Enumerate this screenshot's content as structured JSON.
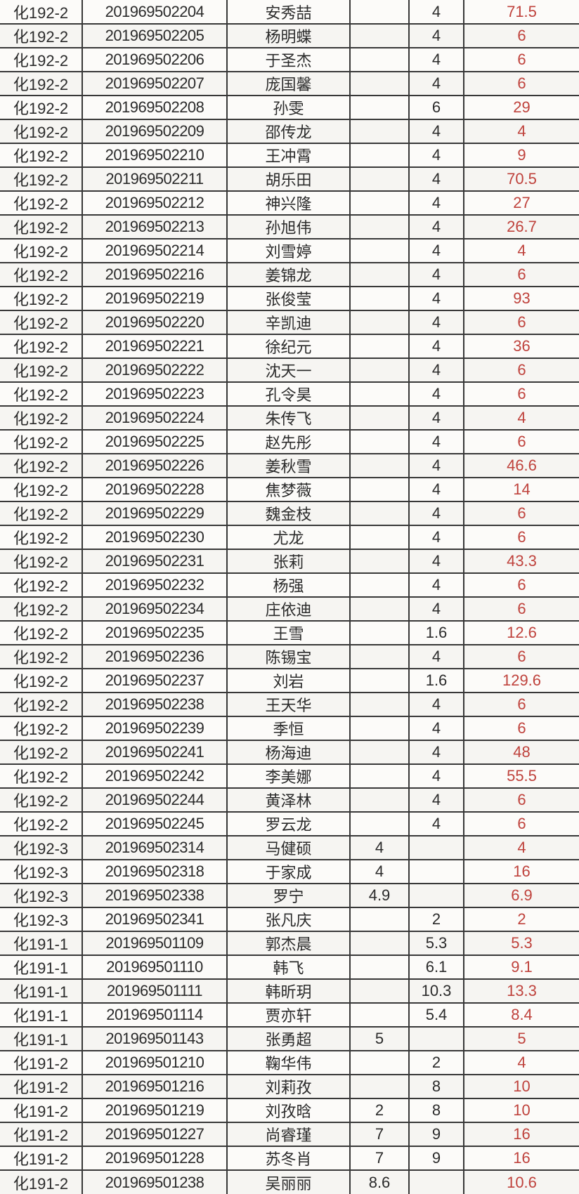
{
  "colors": {
    "accent_red": "#bf423c",
    "text": "#2b2b2b",
    "grid": "#383838",
    "background": "#fbfaf8"
  },
  "table": {
    "rows": [
      {
        "class": "化192-2",
        "student_id": "201969502204",
        "name": "安秀喆",
        "val_a": "",
        "val_b": "4",
        "amount": "71.5"
      },
      {
        "class": "化192-2",
        "student_id": "201969502205",
        "name": "杨明蝶",
        "val_a": "",
        "val_b": "4",
        "amount": "6"
      },
      {
        "class": "化192-2",
        "student_id": "201969502206",
        "name": "于圣杰",
        "val_a": "",
        "val_b": "4",
        "amount": "6"
      },
      {
        "class": "化192-2",
        "student_id": "201969502207",
        "name": "庞国馨",
        "val_a": "",
        "val_b": "4",
        "amount": "6"
      },
      {
        "class": "化192-2",
        "student_id": "201969502208",
        "name": "孙雯",
        "val_a": "",
        "val_b": "6",
        "amount": "29"
      },
      {
        "class": "化192-2",
        "student_id": "201969502209",
        "name": "邵传龙",
        "val_a": "",
        "val_b": "4",
        "amount": "4"
      },
      {
        "class": "化192-2",
        "student_id": "201969502210",
        "name": "王冲霄",
        "val_a": "",
        "val_b": "4",
        "amount": "9"
      },
      {
        "class": "化192-2",
        "student_id": "201969502211",
        "name": "胡乐田",
        "val_a": "",
        "val_b": "4",
        "amount": "70.5"
      },
      {
        "class": "化192-2",
        "student_id": "201969502212",
        "name": "神兴隆",
        "val_a": "",
        "val_b": "4",
        "amount": "27"
      },
      {
        "class": "化192-2",
        "student_id": "201969502213",
        "name": "孙旭伟",
        "val_a": "",
        "val_b": "4",
        "amount": "26.7"
      },
      {
        "class": "化192-2",
        "student_id": "201969502214",
        "name": "刘雪婷",
        "val_a": "",
        "val_b": "4",
        "amount": "4"
      },
      {
        "class": "化192-2",
        "student_id": "201969502216",
        "name": "姜锦龙",
        "val_a": "",
        "val_b": "4",
        "amount": "6"
      },
      {
        "class": "化192-2",
        "student_id": "201969502219",
        "name": "张俊莹",
        "val_a": "",
        "val_b": "4",
        "amount": "93"
      },
      {
        "class": "化192-2",
        "student_id": "201969502220",
        "name": "辛凯迪",
        "val_a": "",
        "val_b": "4",
        "amount": "6"
      },
      {
        "class": "化192-2",
        "student_id": "201969502221",
        "name": "徐纪元",
        "val_a": "",
        "val_b": "4",
        "amount": "36"
      },
      {
        "class": "化192-2",
        "student_id": "201969502222",
        "name": "沈天一",
        "val_a": "",
        "val_b": "4",
        "amount": "6"
      },
      {
        "class": "化192-2",
        "student_id": "201969502223",
        "name": "孔令昊",
        "val_a": "",
        "val_b": "4",
        "amount": "6"
      },
      {
        "class": "化192-2",
        "student_id": "201969502224",
        "name": "朱传飞",
        "val_a": "",
        "val_b": "4",
        "amount": "4"
      },
      {
        "class": "化192-2",
        "student_id": "201969502225",
        "name": "赵先彤",
        "val_a": "",
        "val_b": "4",
        "amount": "6"
      },
      {
        "class": "化192-2",
        "student_id": "201969502226",
        "name": "姜秋雪",
        "val_a": "",
        "val_b": "4",
        "amount": "46.6"
      },
      {
        "class": "化192-2",
        "student_id": "201969502228",
        "name": "焦梦薇",
        "val_a": "",
        "val_b": "4",
        "amount": "14"
      },
      {
        "class": "化192-2",
        "student_id": "201969502229",
        "name": "魏金枝",
        "val_a": "",
        "val_b": "4",
        "amount": "6"
      },
      {
        "class": "化192-2",
        "student_id": "201969502230",
        "name": "尤龙",
        "val_a": "",
        "val_b": "4",
        "amount": "6"
      },
      {
        "class": "化192-2",
        "student_id": "201969502231",
        "name": "张莉",
        "val_a": "",
        "val_b": "4",
        "amount": "43.3"
      },
      {
        "class": "化192-2",
        "student_id": "201969502232",
        "name": "杨强",
        "val_a": "",
        "val_b": "4",
        "amount": "6"
      },
      {
        "class": "化192-2",
        "student_id": "201969502234",
        "name": "庄依迪",
        "val_a": "",
        "val_b": "4",
        "amount": "6"
      },
      {
        "class": "化192-2",
        "student_id": "201969502235",
        "name": "王雪",
        "val_a": "",
        "val_b": "1.6",
        "amount": "12.6"
      },
      {
        "class": "化192-2",
        "student_id": "201969502236",
        "name": "陈锡宝",
        "val_a": "",
        "val_b": "4",
        "amount": "6"
      },
      {
        "class": "化192-2",
        "student_id": "201969502237",
        "name": "刘岩",
        "val_a": "",
        "val_b": "1.6",
        "amount": "129.6"
      },
      {
        "class": "化192-2",
        "student_id": "201969502238",
        "name": "王天华",
        "val_a": "",
        "val_b": "4",
        "amount": "6"
      },
      {
        "class": "化192-2",
        "student_id": "201969502239",
        "name": "季恒",
        "val_a": "",
        "val_b": "4",
        "amount": "6"
      },
      {
        "class": "化192-2",
        "student_id": "201969502241",
        "name": "杨海迪",
        "val_a": "",
        "val_b": "4",
        "amount": "48"
      },
      {
        "class": "化192-2",
        "student_id": "201969502242",
        "name": "李美娜",
        "val_a": "",
        "val_b": "4",
        "amount": "55.5"
      },
      {
        "class": "化192-2",
        "student_id": "201969502244",
        "name": "黄泽林",
        "val_a": "",
        "val_b": "4",
        "amount": "6"
      },
      {
        "class": "化192-2",
        "student_id": "201969502245",
        "name": "罗云龙",
        "val_a": "",
        "val_b": "4",
        "amount": "6"
      },
      {
        "class": "化192-3",
        "student_id": "201969502314",
        "name": "马健硕",
        "val_a": "4",
        "val_b": "",
        "amount": "4"
      },
      {
        "class": "化192-3",
        "student_id": "201969502318",
        "name": "于家成",
        "val_a": "4",
        "val_b": "",
        "amount": "16"
      },
      {
        "class": "化192-3",
        "student_id": "201969502338",
        "name": "罗宁",
        "val_a": "4.9",
        "val_b": "",
        "amount": "6.9"
      },
      {
        "class": "化192-3",
        "student_id": "201969502341",
        "name": "张凡庆",
        "val_a": "",
        "val_b": "2",
        "amount": "2"
      },
      {
        "class": "化191-1",
        "student_id": "201969501109",
        "name": "郭杰晨",
        "val_a": "",
        "val_b": "5.3",
        "amount": "5.3"
      },
      {
        "class": "化191-1",
        "student_id": "201969501110",
        "name": "韩飞",
        "val_a": "",
        "val_b": "6.1",
        "amount": "9.1"
      },
      {
        "class": "化191-1",
        "student_id": "201969501111",
        "name": "韩昕玥",
        "val_a": "",
        "val_b": "10.3",
        "amount": "13.3"
      },
      {
        "class": "化191-1",
        "student_id": "201969501114",
        "name": "贾亦轩",
        "val_a": "",
        "val_b": "5.4",
        "amount": "8.4"
      },
      {
        "class": "化191-1",
        "student_id": "201969501143",
        "name": "张勇超",
        "val_a": "5",
        "val_b": "",
        "amount": "5"
      },
      {
        "class": "化191-2",
        "student_id": "201969501210",
        "name": "鞠华伟",
        "val_a": "",
        "val_b": "2",
        "amount": "4"
      },
      {
        "class": "化191-2",
        "student_id": "201969501216",
        "name": "刘莉孜",
        "val_a": "",
        "val_b": "8",
        "amount": "10"
      },
      {
        "class": "化191-2",
        "student_id": "201969501219",
        "name": "刘孜晗",
        "val_a": "2",
        "val_b": "8",
        "amount": "10"
      },
      {
        "class": "化191-2",
        "student_id": "201969501227",
        "name": "尚睿瑾",
        "val_a": "7",
        "val_b": "9",
        "amount": "16"
      },
      {
        "class": "化191-2",
        "student_id": "201969501228",
        "name": "苏冬肖",
        "val_a": "7",
        "val_b": "9",
        "amount": "16"
      },
      {
        "class": "化191-2",
        "student_id": "201969501238",
        "name": "吴丽丽",
        "val_a": "8.6",
        "val_b": "",
        "amount": "10.6"
      }
    ]
  }
}
